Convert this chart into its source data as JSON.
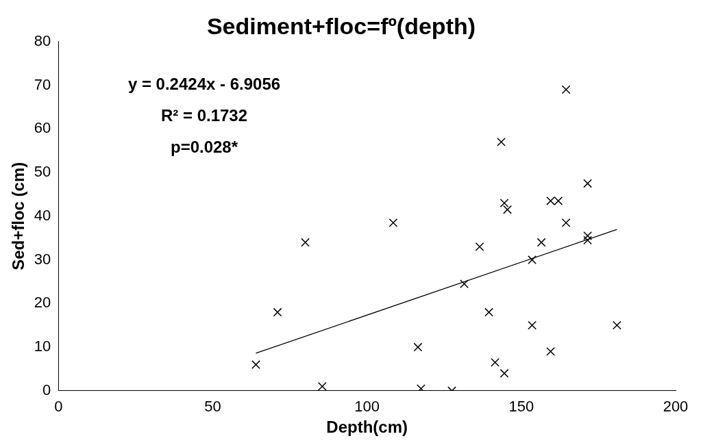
{
  "chart_data": {
    "type": "scatter",
    "title": "Sediment+floc=fº(depth)",
    "xlabel": "Depth(cm)",
    "ylabel": "Sed+floc (cm)",
    "xlim": [
      0,
      200
    ],
    "xticks": [
      0,
      50,
      100,
      150,
      200
    ],
    "ylim": [
      0,
      80
    ],
    "yticks": [
      0,
      10,
      20,
      30,
      40,
      50,
      60,
      70,
      80
    ],
    "grid": false,
    "legend": false,
    "marker": "cross",
    "annotations": [
      "y = 0.2424x - 6.9056",
      "R² = 0.1732",
      "p=0.028*"
    ],
    "series": [
      {
        "color": "#000000",
        "x": [
          64,
          71,
          80,
          85.5,
          108.5,
          116.5,
          117.5,
          127.5,
          131.5,
          136.5,
          139.5,
          141.5,
          143.5,
          144.5,
          144.5,
          145.5,
          153.5,
          153.5,
          156.5,
          159.5,
          159.5,
          162,
          164.5,
          164.5,
          171.5,
          171.5,
          171.5,
          181
        ],
        "values": [
          6,
          18,
          34,
          1,
          38.5,
          10,
          0.5,
          0,
          24.5,
          33,
          18,
          6.5,
          57,
          43,
          4,
          41.5,
          30,
          15,
          34,
          43.5,
          9,
          43.5,
          69,
          38.5,
          47.5,
          35.5,
          34.5,
          15
        ]
      },
      {
        "type": "line",
        "marker": "none",
        "line_style": "solid",
        "color": "#000000",
        "x": [
          64,
          181
        ],
        "values": [
          8.61,
          36.97
        ]
      }
    ]
  }
}
